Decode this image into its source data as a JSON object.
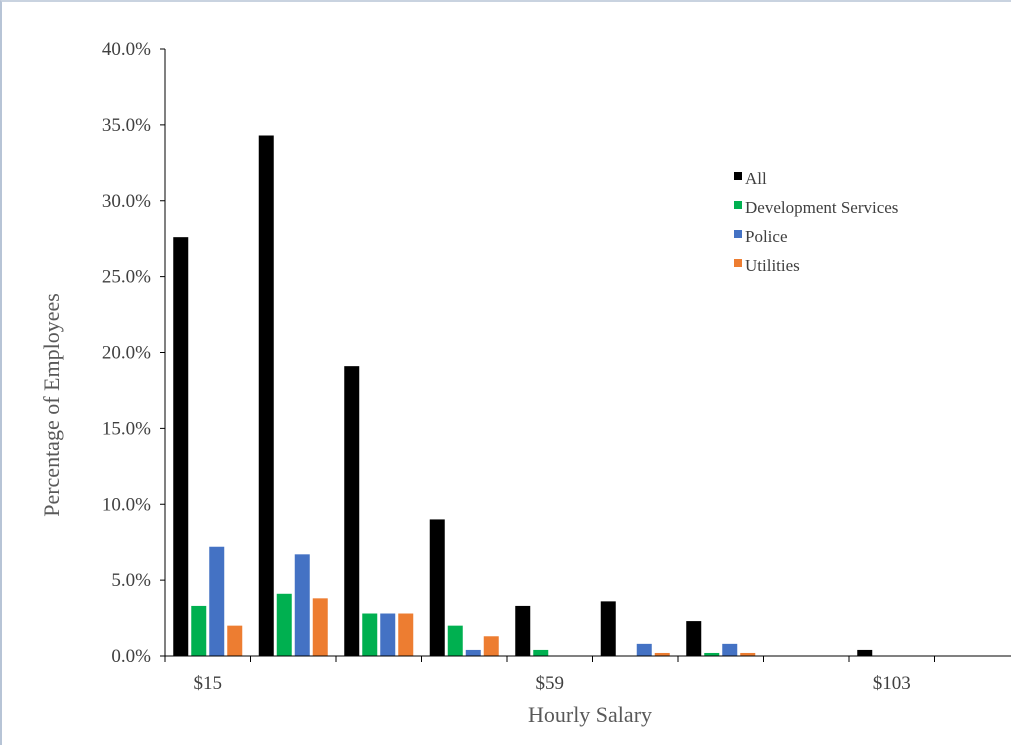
{
  "chart_data": {
    "type": "bar",
    "title": "",
    "xlabel": "Hourly Salary",
    "ylabel": "Percentage of Employees",
    "ylim": [
      0,
      0.4
    ],
    "y_ticks": [
      "0.0%",
      "5.0%",
      "10.0%",
      "15.0%",
      "20.0%",
      "25.0%",
      "30.0%",
      "35.0%",
      "40.0%"
    ],
    "x_tick_labels": [
      {
        "label": "$15",
        "group": 0
      },
      {
        "label": "$59",
        "group": 4
      },
      {
        "label": "$103",
        "group": 8
      }
    ],
    "group_count": 9,
    "legend_position": "upper-right",
    "grid": false,
    "series": [
      {
        "name": "All",
        "color": "#000000",
        "values": [
          0.276,
          0.343,
          0.191,
          0.09,
          0.033,
          0.036,
          0.023,
          0.0,
          0.004
        ]
      },
      {
        "name": "Development Services",
        "color": "#00b050",
        "values": [
          0.033,
          0.041,
          0.028,
          0.02,
          0.004,
          0.0,
          0.002,
          0.0,
          0.0
        ]
      },
      {
        "name": "Police",
        "color": "#4472c4",
        "values": [
          0.072,
          0.067,
          0.028,
          0.004,
          0.0,
          0.008,
          0.008,
          0.0,
          0.0
        ]
      },
      {
        "name": "Utilities",
        "color": "#ed7d31",
        "values": [
          0.02,
          0.038,
          0.028,
          0.013,
          0.0,
          0.002,
          0.002,
          0.0,
          0.0
        ]
      }
    ]
  }
}
